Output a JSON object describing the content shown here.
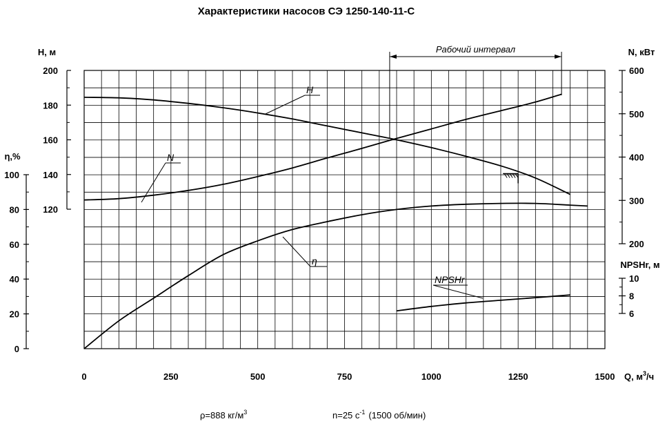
{
  "chart_data": {
    "type": "line",
    "title": "Характеристики насосов СЭ 1250-140-11-С",
    "xlabel": "Q, м",
    "xlabel_sup": "3",
    "xlabel_tail": "/ч",
    "x_ticks": [
      "0",
      "250",
      "500",
      "750",
      "1000",
      "1250",
      "1500"
    ],
    "xlim": [
      0,
      1500
    ],
    "grid": true,
    "axes": {
      "H": {
        "label": "H, м",
        "ticks": [
          "120",
          "140",
          "160",
          "180",
          "200"
        ],
        "range": [
          120,
          200
        ]
      },
      "eta": {
        "label": "η,%",
        "ticks": [
          "0",
          "20",
          "40",
          "60",
          "80",
          "100"
        ],
        "range": [
          0,
          100
        ]
      },
      "N": {
        "label": "N, кВт",
        "ticks": [
          "200",
          "300",
          "400",
          "500",
          "600"
        ],
        "range": [
          200,
          600
        ]
      },
      "NPSH": {
        "label": "NPSHr, м",
        "ticks": [
          "6",
          "8",
          "10"
        ],
        "range": [
          6,
          10
        ]
      }
    },
    "series": [
      {
        "name": "H",
        "axis": "H",
        "x": [
          0,
          100,
          200,
          300,
          400,
          500,
          600,
          700,
          800,
          900,
          1000,
          1100,
          1200,
          1300,
          1400
        ],
        "y": [
          184.5,
          184.2,
          183,
          181,
          178.5,
          175.5,
          172,
          168,
          164,
          160,
          155.5,
          150.5,
          145,
          138,
          128.5
        ]
      },
      {
        "name": "N",
        "axis": "N",
        "x": [
          0,
          100,
          200,
          300,
          400,
          500,
          600,
          700,
          800,
          900,
          1000,
          1100,
          1200,
          1300,
          1375
        ],
        "y": [
          301,
          304,
          312,
          323,
          337,
          355,
          375,
          398,
          420,
          443,
          465,
          487,
          507,
          527,
          545
        ]
      },
      {
        "name": "η",
        "axis": "eta",
        "x": [
          0,
          100,
          200,
          300,
          400,
          500,
          600,
          700,
          800,
          900,
          1000,
          1100,
          1200,
          1300,
          1400,
          1450
        ],
        "y": [
          0,
          16,
          29,
          42,
          54,
          62,
          68.5,
          73,
          77,
          80,
          82,
          83,
          83.5,
          83.5,
          82.5,
          82
        ]
      },
      {
        "name": "NPSHr",
        "axis": "NPSH",
        "x": [
          900,
          1000,
          1100,
          1200,
          1300,
          1400
        ],
        "y": [
          6.3,
          6.8,
          7.2,
          7.5,
          7.8,
          8.1
        ]
      }
    ],
    "working_interval": {
      "label": "Рабочий интервал",
      "x": [
        880,
        1375
      ]
    },
    "footnote_density": "ρ=888 кг/м",
    "footnote_density_sup": "3",
    "footnote_speed": "n=25 с",
    "footnote_speed_sup": "-1",
    "footnote_speed_tail": "(1500 об/мин)"
  }
}
